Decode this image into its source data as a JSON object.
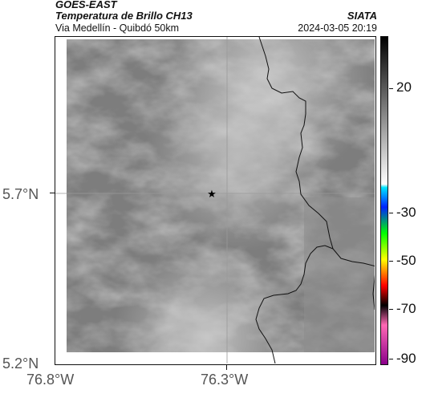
{
  "header": {
    "title": "GOES-EAST",
    "subtitle": "Temperatura de Brillo CH13",
    "location": "Via Medellín - Quibdó 50km",
    "brand": "SIATA",
    "datetime": "2024-03-05 20:19"
  },
  "map": {
    "marker": "star-icon",
    "lat_labels": [
      "5.7°N",
      "5.2°N"
    ],
    "lon_labels": [
      "76.8°W",
      "76.3°W"
    ]
  },
  "colorbar": {
    "labels": [
      "20",
      "-30",
      "-50",
      "-70",
      "-90"
    ],
    "stops": [
      "#000000",
      "#ffffff",
      "#00e5ff",
      "#0022ff",
      "#00ff00",
      "#ffff00",
      "#ff0000",
      "#000000",
      "#ff69b4",
      "#8b008b"
    ]
  }
}
